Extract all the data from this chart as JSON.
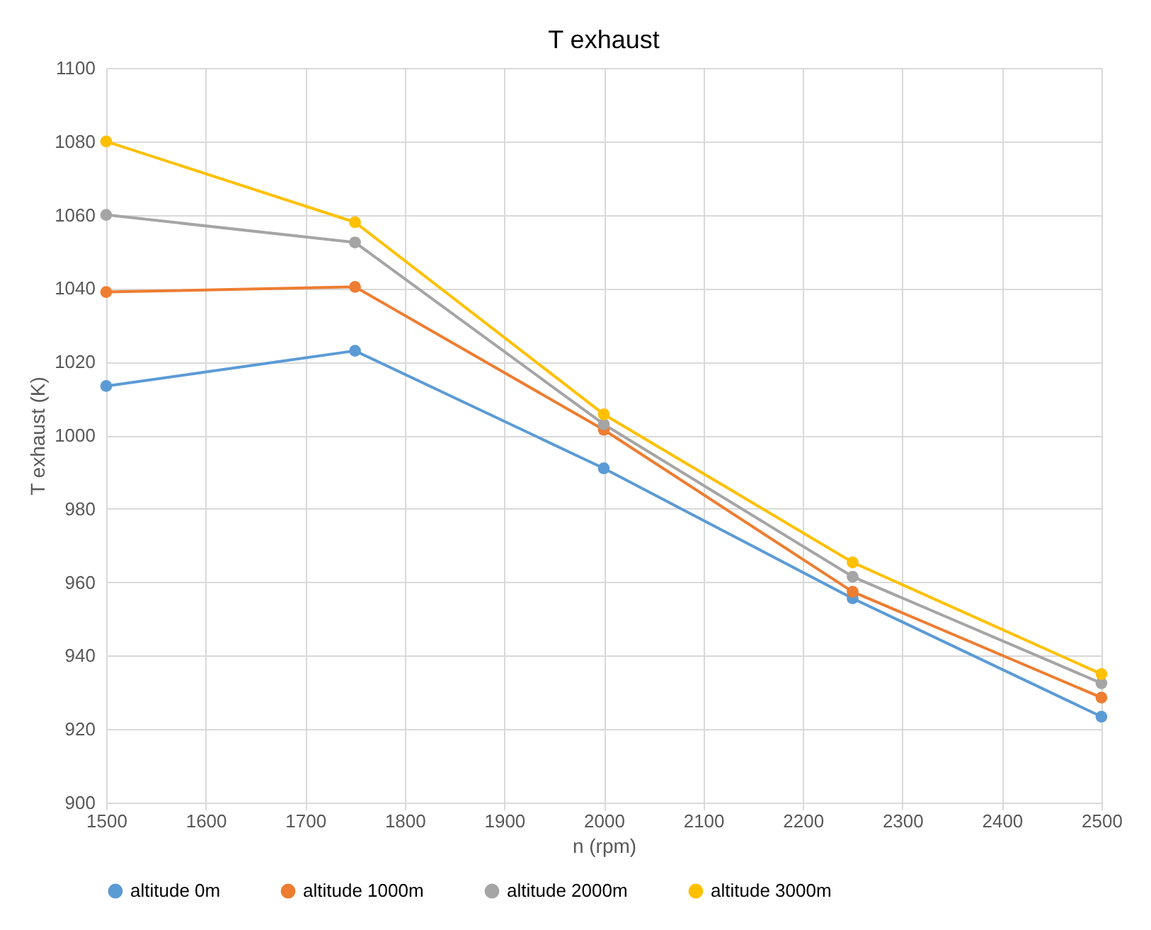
{
  "chart_data": {
    "type": "line",
    "title": "T exhaust",
    "xlabel": "n (rpm)",
    "ylabel": "T exhaust (K)",
    "x": [
      1500,
      1750,
      2000,
      2250,
      2500
    ],
    "series": [
      {
        "name": "altitude 0m",
        "color": "#5b9bd5",
        "values": [
          1013.4,
          1023,
          991,
          955.6,
          923.4
        ]
      },
      {
        "name": "altitude 1000m",
        "color": "#ed7d31",
        "values": [
          1039,
          1040.4,
          1001.5,
          957.4,
          928.6
        ]
      },
      {
        "name": "altitude 2000m",
        "color": "#a5a5a5",
        "values": [
          1060,
          1052.5,
          1003,
          961.5,
          932.5
        ]
      },
      {
        "name": "altitude 3000m",
        "color": "#ffc000",
        "values": [
          1080,
          1058,
          1005.7,
          965.4,
          935
        ]
      }
    ],
    "xlim": [
      1500,
      2500
    ],
    "xticks": [
      1500,
      1600,
      1700,
      1800,
      1900,
      2000,
      2100,
      2200,
      2300,
      2400,
      2500
    ],
    "ylim": [
      900,
      1100
    ],
    "yticks": [
      900,
      920,
      940,
      960,
      980,
      1000,
      1020,
      1040,
      1060,
      1080,
      1100
    ],
    "grid": true,
    "legend": "bottom",
    "marker": "circle",
    "line_style": "solid"
  }
}
